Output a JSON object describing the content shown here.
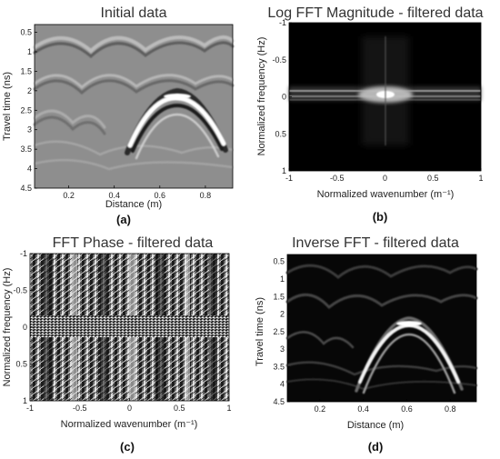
{
  "chart_data": [
    {
      "type": "heatmap",
      "title": "Initial data",
      "xlabel": "Distance (m)",
      "ylabel": "Travel time (ns)",
      "panel_label": "(a)",
      "xlim": [
        0.05,
        0.92
      ],
      "ylim": [
        4.5,
        0.3
      ],
      "xticks": [
        "0.2",
        "0.4",
        "0.6",
        "0.8"
      ],
      "yticks": [
        "0.5",
        "1",
        "1.5",
        "2",
        "2.5",
        "3",
        "3.5",
        "4",
        "4.5"
      ],
      "colormap": "gray",
      "features": [
        {
          "name": "hyperbola-apex",
          "x": 0.65,
          "y": 2.35
        }
      ]
    },
    {
      "type": "heatmap",
      "title": "Log FFT Magnitude - filtered data",
      "xlabel": "Normalized wavenumber (m⁻¹)",
      "ylabel": "Normalized frequency (Hz)",
      "panel_label": "(b)",
      "xlim": [
        -1,
        1
      ],
      "ylim": [
        -1,
        1
      ],
      "xticks": [
        "-1",
        "-0.5",
        "0",
        "0.5",
        "1"
      ],
      "yticks": [
        "-1",
        "-0.5",
        "0",
        "0.5",
        "1"
      ],
      "colormap": "gray"
    },
    {
      "type": "heatmap",
      "title": "FFT Phase - filtered data",
      "xlabel": "Normalized wavenumber (m⁻¹)",
      "ylabel": "Normalized frequency (Hz)",
      "panel_label": "(c)",
      "xlim": [
        -1,
        1
      ],
      "ylim": [
        -1,
        1
      ],
      "xticks": [
        "-1",
        "-0.5",
        "0",
        "0.5",
        "1"
      ],
      "yticks": [
        "-1",
        "-0.5",
        "0",
        "0.5",
        "1"
      ],
      "colormap": "gray"
    },
    {
      "type": "heatmap",
      "title": "Inverse FFT - filtered data",
      "xlabel": "Distance (m)",
      "ylabel": "Travel time (ns)",
      "panel_label": "(d)",
      "xlim": [
        0.05,
        0.92
      ],
      "ylim": [
        4.5,
        0.3
      ],
      "xticks": [
        "0.2",
        "0.4",
        "0.6",
        "0.8"
      ],
      "yticks": [
        "0.5",
        "1",
        "1.5",
        "2",
        "2.5",
        "3",
        "3.5",
        "4",
        "4.5"
      ],
      "colormap": "gray",
      "features": [
        {
          "name": "hyperbola-apex",
          "x": 0.65,
          "y": 2.35
        }
      ]
    }
  ],
  "tick_values": {
    "distance": [
      0.2,
      0.4,
      0.6,
      0.8
    ],
    "time": [
      0.5,
      1,
      1.5,
      2,
      2.5,
      3,
      3.5,
      4,
      4.5
    ],
    "normalized": [
      -1,
      -0.5,
      0,
      0.5,
      1
    ]
  }
}
